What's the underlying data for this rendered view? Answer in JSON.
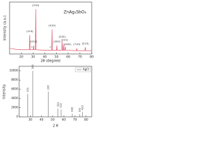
{
  "chart_data": [
    {
      "type": "line",
      "title": "ZnAg₂SbO₆",
      "xlabel": "2θ (degree)",
      "ylabel": "Intensity (a.u.)",
      "xlim": [
        10,
        80
      ],
      "xticks": [
        20,
        30,
        40,
        50,
        60,
        70,
        80
      ],
      "ylim": [
        0,
        110
      ],
      "series": [
        {
          "color": "#d9546a",
          "x": [
            10,
            15,
            20,
            25,
            26.9,
            27.2,
            27.5,
            30.2,
            30.5,
            30.8,
            32.0,
            32.3,
            32.6,
            40,
            45.9,
            46.2,
            46.5,
            50.0,
            50.3,
            50.6,
            54.5,
            54.8,
            55.1,
            55.9,
            56.2,
            56.5,
            57.2,
            57.5,
            57.8,
            67.0,
            67.3,
            67.6,
            74.2,
            74.5,
            74.8,
            80
          ],
          "values": [
            12,
            10,
            9,
            9,
            9,
            40,
            9,
            9,
            18,
            9,
            9,
            95,
            9,
            8,
            8,
            52,
            8,
            8,
            18,
            8,
            8,
            28,
            8,
            8,
            22,
            8,
            8,
            15,
            8,
            7,
            12,
            7,
            7,
            14,
            7,
            7
          ]
        }
      ],
      "annotations": [
        {
          "x": 27.2,
          "y": 48,
          "label": "(110)"
        },
        {
          "x": 30.5,
          "y": 26,
          "label": "(012)"
        },
        {
          "x": 32.3,
          "y": 103,
          "label": "(210)"
        },
        {
          "x": 46.2,
          "y": 60,
          "label": "(410)"
        },
        {
          "x": 50.3,
          "y": 26,
          "label": "(003)"
        },
        {
          "x": 54.8,
          "y": 36,
          "label": "(202)"
        },
        {
          "x": 56.9,
          "y": 30,
          "label": "(211)"
        },
        {
          "x": 59.5,
          "y": 20,
          "label": "(420)"
        },
        {
          "x": 67.3,
          "y": 20,
          "label": "(710)"
        },
        {
          "x": 74.5,
          "y": 22,
          "label": "(213)"
        },
        {
          "x": 29.0,
          "y": 14,
          "label": "*"
        },
        {
          "x": 44.6,
          "y": 14,
          "label": "*"
        }
      ]
    },
    {
      "type": "stick",
      "xlabel": "2 θ",
      "ylabel": "Intensity",
      "xlim": [
        20,
        85
      ],
      "xticks": [
        30,
        40,
        50,
        60,
        70,
        80
      ],
      "ylim": [
        0,
        11000
      ],
      "yticks": [
        0,
        2000,
        4000,
        6000,
        8000,
        10000
      ],
      "legend": "upper right",
      "series": [
        {
          "name": "AgCl",
          "color": "#777777",
          "x": [
            27.8,
            32.2,
            46.2,
            54.8,
            57.5,
            67.4,
            74.4,
            76.7
          ],
          "values": [
            5000,
            10000,
            5500,
            1800,
            1600,
            700,
            600,
            1100
          ],
          "peak_labels": [
            "111",
            "200",
            "220",
            "311",
            "222",
            "400",
            "331",
            "420"
          ]
        }
      ]
    }
  ]
}
